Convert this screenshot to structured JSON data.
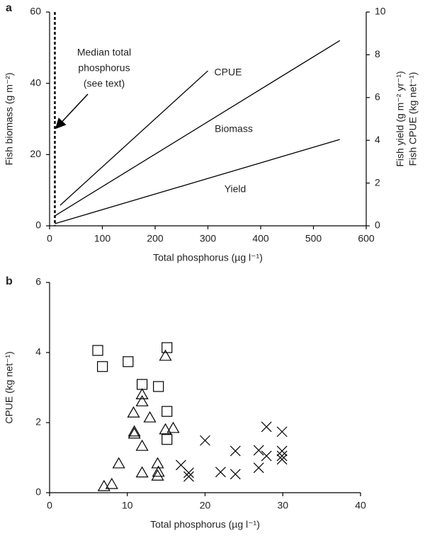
{
  "chart_data": [
    {
      "type": "line",
      "panel": "a",
      "xlabel": "Total phosphorus (µg l⁻¹)",
      "ylabel": "Fish biomass (g m⁻²)",
      "y2label": [
        "Fish yield (g m⁻² yr⁻¹)",
        "Fish CPUE (kg net⁻¹)"
      ],
      "xlim": [
        0,
        600
      ],
      "xticks": [
        0,
        100,
        200,
        300,
        400,
        500,
        600
      ],
      "ylim": [
        0,
        60
      ],
      "yticks": [
        0,
        20,
        40,
        60
      ],
      "y2lim": [
        0,
        10
      ],
      "y2ticks": [
        0,
        2,
        4,
        6,
        8,
        10
      ],
      "series": [
        {
          "name": "CPUE",
          "color": "#000000",
          "axis": "y2",
          "x": [
            20,
            300
          ],
          "values": [
            0.96,
            7.25
          ]
        },
        {
          "name": "Biomass",
          "color": "#000000",
          "x": [
            10,
            550
          ],
          "values": [
            2.8,
            52
          ]
        },
        {
          "name": "Yield",
          "color": "#000000",
          "axis": "y2",
          "x": [
            10,
            550
          ],
          "values": [
            0.1,
            4.04
          ]
        }
      ],
      "annotation": {
        "lines": [
          "Median total",
          "phosphorus",
          "(see text)"
        ],
        "x": 10
      }
    },
    {
      "type": "scatter",
      "panel": "b",
      "xlabel": "Total phosphorus (µg l⁻¹)",
      "ylabel": "CPUE (kg net⁻¹)",
      "xlim": [
        0,
        40
      ],
      "xticks": [
        0,
        10,
        20,
        30,
        40
      ],
      "ylim": [
        0,
        6
      ],
      "yticks": [
        0,
        2,
        4,
        6
      ],
      "series": [
        {
          "marker": "square",
          "color": "#000000",
          "x": [
            6.2,
            6.8,
            10.1,
            11.9,
            14.0,
            15.1,
            15.1,
            15.1
          ],
          "values": [
            4.06,
            3.6,
            3.74,
            3.09,
            3.03,
            4.14,
            2.32,
            1.52
          ]
        },
        {
          "marker": "triangle",
          "color": "#000000",
          "x": [
            7.0,
            8.0,
            8.9,
            10.8,
            10.9,
            10.9,
            11.9,
            11.9,
            11.9,
            11.9,
            12.9,
            13.9,
            13.9,
            14.0,
            14.9,
            14.9,
            15.9
          ],
          "values": [
            0.18,
            0.24,
            0.83,
            2.28,
            1.68,
            1.74,
            0.57,
            1.33,
            2.6,
            2.8,
            2.14,
            0.83,
            0.48,
            0.59,
            3.9,
            1.8,
            1.84
          ]
        },
        {
          "marker": "cross",
          "color": "#000000",
          "x": [
            16.9,
            17.9,
            17.9,
            20.0,
            22.0,
            23.9,
            23.9,
            26.9,
            26.9,
            27.9,
            27.9,
            29.9,
            29.9,
            29.9,
            29.9
          ],
          "values": [
            0.79,
            0.57,
            0.46,
            1.49,
            0.59,
            1.19,
            0.53,
            1.21,
            0.71,
            1.88,
            1.05,
            1.74,
            1.19,
            0.95,
            1.05
          ]
        }
      ]
    }
  ]
}
